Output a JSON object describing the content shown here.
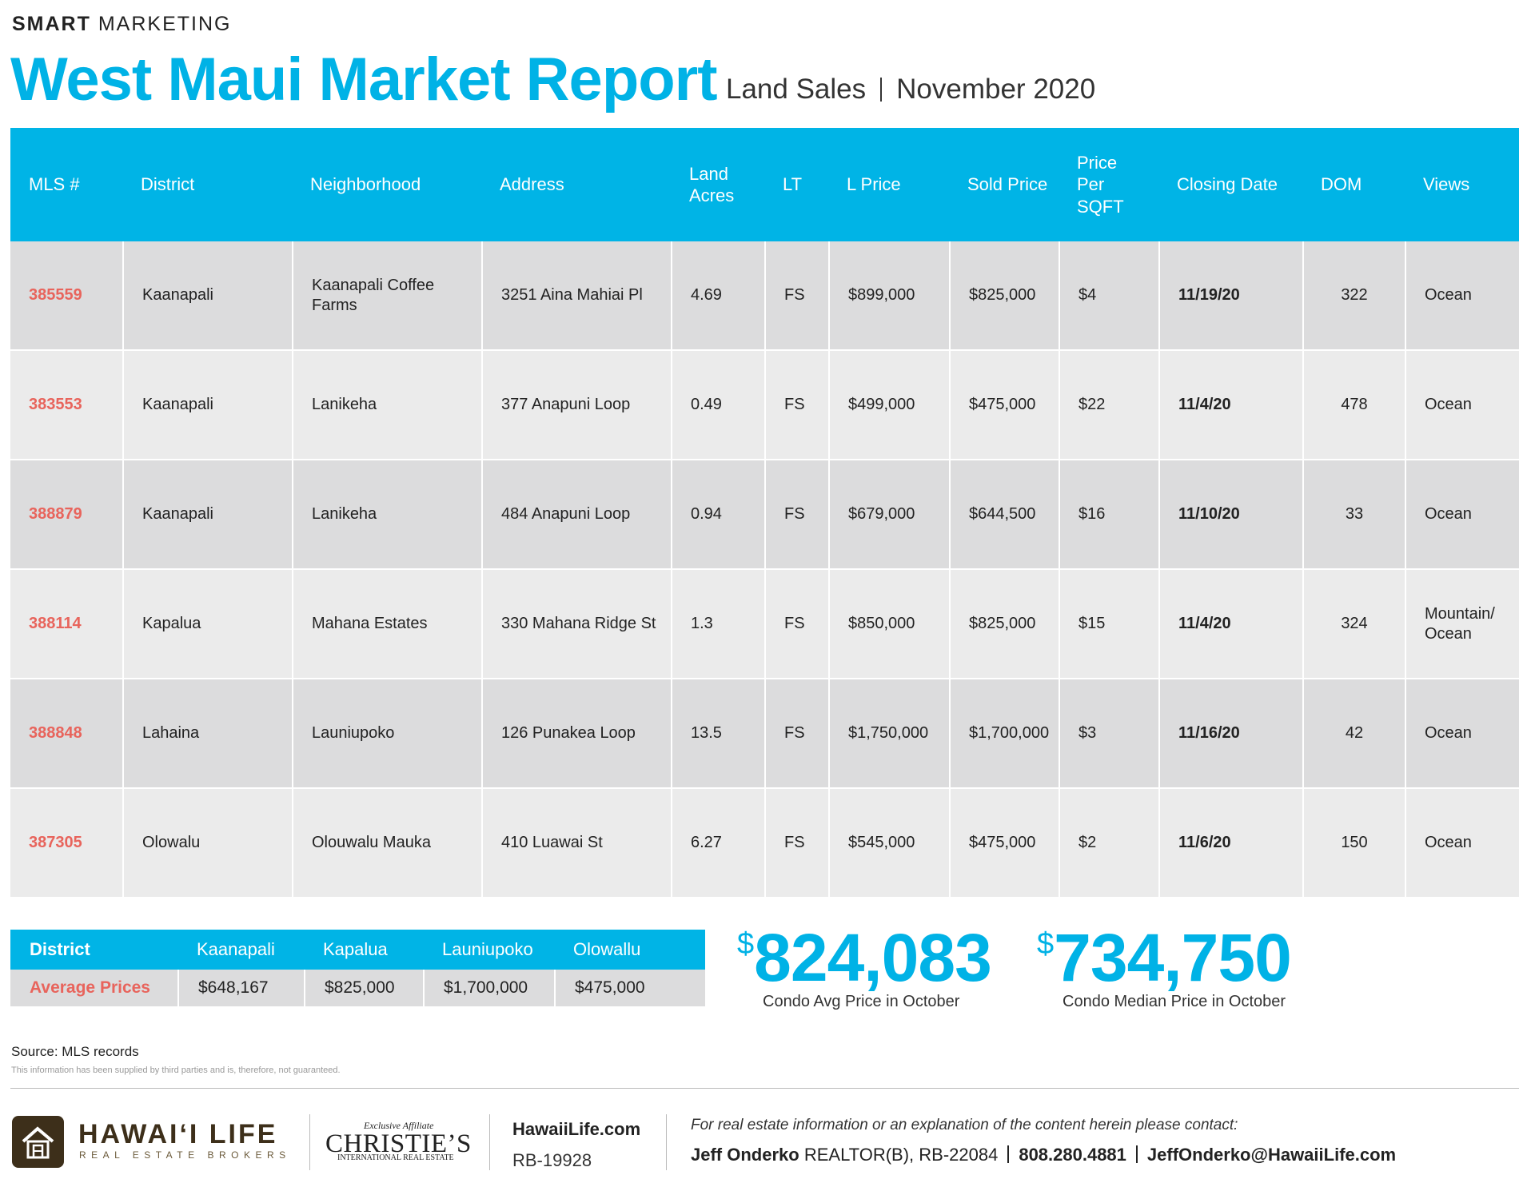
{
  "header": {
    "kicker_bold": "SMART",
    "kicker": "MARKETING",
    "title": "West Maui Market Report",
    "subtitle_parts": [
      "Land Sales",
      "November 2020"
    ]
  },
  "table": {
    "columns": [
      "MLS #",
      "District",
      "Neighborhood",
      "Address",
      "Land Acres",
      "LT",
      "L Price",
      "Sold Price",
      "Price Per SQFT",
      "Closing Date",
      "DOM",
      "Views"
    ],
    "rows": [
      [
        "385559",
        "Kaanapali",
        "Kaanapali Coffee Farms",
        "3251 Aina Mahiai Pl",
        "4.69",
        "FS",
        "$899,000",
        "$825,000",
        "$4",
        "11/19/20",
        "322",
        "Ocean"
      ],
      [
        "383553",
        "Kaanapali",
        "Lanikeha",
        "377 Anapuni Loop",
        "0.49",
        "FS",
        "$499,000",
        "$475,000",
        "$22",
        "11/4/20",
        "478",
        "Ocean"
      ],
      [
        "388879",
        "Kaanapali",
        "Lanikeha",
        "484 Anapuni Loop",
        "0.94",
        "FS",
        "$679,000",
        "$644,500",
        "$16",
        "11/10/20",
        "33",
        "Ocean"
      ],
      [
        "388114",
        "Kapalua",
        "Mahana Estates",
        "330 Mahana Ridge St",
        "1.3",
        "FS",
        "$850,000",
        "$825,000",
        "$15",
        "11/4/20",
        "324",
        "Mountain/ Ocean"
      ],
      [
        "388848",
        "Lahaina",
        "Launiupoko",
        "126 Punakea Loop",
        "13.5",
        "FS",
        "$1,750,000",
        "$1,700,000",
        "$3",
        "11/16/20",
        "42",
        "Ocean"
      ],
      [
        "387305",
        "Olowalu",
        "Olouwalu Mauka",
        "410 Luawai St",
        "6.27",
        "FS",
        "$545,000",
        "$475,000",
        "$2",
        "11/6/20",
        "150",
        "Ocean"
      ]
    ]
  },
  "summary": {
    "row_header": "District",
    "columns": [
      "Kaanapali",
      "Kapalua",
      "Launiupoko",
      "Olowallu"
    ],
    "row_label": "Average Prices",
    "values": [
      "$648,167",
      "$825,000",
      "$1,700,000",
      "$475,000"
    ]
  },
  "stats": [
    {
      "symbol": "$",
      "value": "824,083",
      "label": "Condo Avg Price in October"
    },
    {
      "symbol": "$",
      "value": "734,750",
      "label": "Condo Median Price in October"
    }
  ],
  "source": "Source: MLS records",
  "disclaimer": "This information has been supplied by third parties and is, therefore, not guaranteed.",
  "footer": {
    "brand": "HAWAI‘I LIFE",
    "brand_tagline": "REAL ESTATE BROKERS",
    "affiliate_note": "Exclusive Affiliate",
    "affiliate": "CHRISTIE’S",
    "affiliate_tagline": "INTERNATIONAL REAL ESTATE",
    "website": "HawaiiLife.com",
    "license": "RB-19928",
    "contact_intro": "For real estate information or an explanation of the content herein please contact:",
    "agent_name": "Jeff Onderko",
    "agent_title": "REALTOR(B), RB-22084",
    "phone": "808.280.4881",
    "email": "JeffOnderko@HawaiiLife.com"
  }
}
